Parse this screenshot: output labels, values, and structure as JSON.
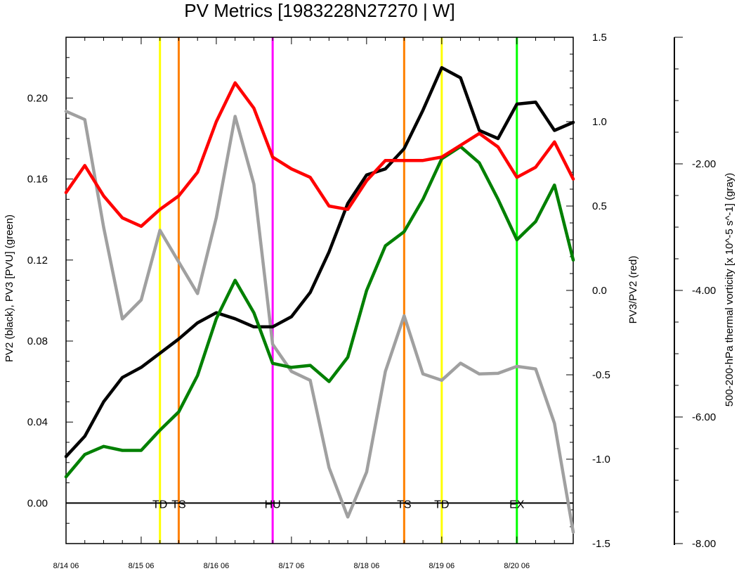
{
  "chart_data": {
    "type": "line",
    "title": "PV Metrics [1983228N27270 | W]",
    "ylabel_left": "PV2 (black), PV3 [PVU] (green)",
    "ylabel_right": "PV3/PV2 (red)",
    "ylabel_far_right": "500-200-hPa thermal vorticity [x 10^-5 s^-1] (gray)",
    "x_ticks": [
      "8/14 06",
      "8/15 06",
      "8/16 06",
      "8/17 06",
      "8/18 06",
      "8/19 06",
      "8/20 06"
    ],
    "x_tick_days": [
      0,
      1,
      2,
      3,
      4,
      5,
      6
    ],
    "x_range_days": [
      0,
      6.75
    ],
    "x_step_days": 0.25,
    "y_left": {
      "range": [
        -0.02,
        0.23
      ],
      "ticks": [
        "0.00",
        "0.04",
        "0.08",
        "0.12",
        "0.16",
        "0.20"
      ],
      "tick_values": [
        0.0,
        0.04,
        0.08,
        0.12,
        0.16,
        0.2
      ]
    },
    "y_right": {
      "range": [
        -1.5,
        1.5
      ],
      "ticks": [
        "-1.5",
        "-1.0",
        "-0.5",
        "0.0",
        "0.5",
        "1.0",
        "1.5"
      ],
      "tick_values": [
        -1.5,
        -1.0,
        -0.5,
        0.0,
        0.5,
        1.0,
        1.5
      ]
    },
    "y_far_right": {
      "range": [
        -8.0,
        0.0
      ],
      "ticks": [
        "-8.00",
        "-6.00",
        "-4.00",
        "-2.00"
      ],
      "tick_values": [
        -8.0,
        -6.0,
        -4.0,
        -2.0
      ]
    },
    "reference_line_y": 0.0,
    "series": [
      {
        "color": "#000000",
        "axis": "left",
        "values": [
          0.023,
          0.033,
          0.05,
          0.062,
          0.067,
          0.074,
          0.081,
          0.089,
          0.094,
          0.091,
          0.087,
          0.087,
          0.092,
          0.104,
          0.124,
          0.148,
          0.162,
          0.165,
          0.175,
          0.194,
          0.215,
          0.21,
          0.184,
          0.18,
          0.197,
          0.198,
          0.184,
          0.188
        ]
      },
      {
        "color": "#008000",
        "axis": "left",
        "values": [
          0.013,
          0.024,
          0.028,
          0.026,
          0.026,
          0.036,
          0.045,
          0.063,
          0.091,
          0.11,
          0.094,
          0.069,
          0.067,
          0.068,
          0.06,
          0.072,
          0.105,
          0.127,
          0.134,
          0.15,
          0.17,
          0.176,
          0.168,
          0.15,
          0.13,
          0.139,
          0.157,
          0.12
        ]
      },
      {
        "color": "#ff0000",
        "axis": "right",
        "values": [
          0.58,
          0.74,
          0.56,
          0.43,
          0.38,
          0.48,
          0.56,
          0.7,
          1.0,
          1.23,
          1.08,
          0.79,
          0.72,
          0.67,
          0.5,
          0.48,
          0.65,
          0.77,
          0.77,
          0.77,
          0.79,
          0.86,
          0.93,
          0.85,
          0.67,
          0.73,
          0.88,
          0.66
        ]
      },
      {
        "color": "#a0a0a0",
        "axis": "far_right",
        "values": [
          -1.17,
          -1.3,
          -3.0,
          -4.45,
          -4.15,
          -3.05,
          -3.55,
          -4.05,
          -2.85,
          -1.25,
          -2.32,
          -4.85,
          -5.28,
          -5.42,
          -6.8,
          -7.58,
          -6.87,
          -5.28,
          -4.4,
          -5.32,
          -5.42,
          -5.15,
          -5.32,
          -5.31,
          -5.2,
          -5.24,
          -6.1,
          -7.82
        ]
      }
    ],
    "events": [
      {
        "label": "TD",
        "day": 1.25,
        "color": "#ffff00"
      },
      {
        "label": "TS",
        "day": 1.5,
        "color": "#ff8000"
      },
      {
        "label": "HU",
        "day": 2.75,
        "color": "#ff00ff"
      },
      {
        "label": "TS",
        "day": 4.5,
        "color": "#ff8000"
      },
      {
        "label": "TD",
        "day": 5.0,
        "color": "#ffff00"
      },
      {
        "label": "EX",
        "day": 6.0,
        "color": "#00ff00"
      }
    ]
  }
}
